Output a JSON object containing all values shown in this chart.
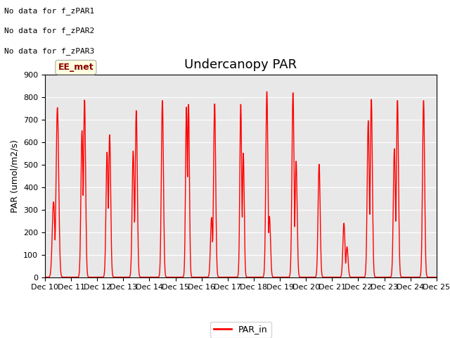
{
  "title": "Undercanopy PAR",
  "ylabel": "PAR (umol/m2/s)",
  "ylim": [
    0,
    900
  ],
  "line_color": "red",
  "line_width": 1.0,
  "bg_color": "#e8e8e8",
  "legend_label": "PAR_in",
  "no_data_texts": [
    "No data for f_zPAR1",
    "No data for f_zPAR2",
    "No data for f_zPAR3"
  ],
  "ee_met_text": "EE_met",
  "xtick_labels": [
    "Dec 10",
    "Dec 11",
    "Dec 12",
    "Dec 13",
    "Dec 14",
    "Dec 15",
    "Dec 16",
    "Dec 17",
    "Dec 18",
    "Dec 19",
    "Dec 20",
    "Dec 21",
    "Dec 22",
    "Dec 23",
    "Dec 24",
    "Dec 25"
  ],
  "ytick_values": [
    0,
    100,
    200,
    300,
    400,
    500,
    600,
    700,
    800,
    900
  ],
  "title_fontsize": 13,
  "axis_label_fontsize": 9,
  "tick_fontsize": 8,
  "nodata_fontsize": 8,
  "eemet_fontsize": 9,
  "n_days": 15,
  "pts_per_day": 96,
  "day_configs": [
    [
      0.48,
      755,
      0.33,
      335,
      0.05
    ],
    [
      0.52,
      790,
      0.42,
      650,
      0.04
    ],
    [
      0.48,
      635,
      0.38,
      555,
      0.04
    ],
    [
      0.5,
      745,
      0.38,
      560,
      0.04
    ],
    [
      0.5,
      790,
      null,
      null,
      0.04
    ],
    [
      0.5,
      775,
      0.42,
      755,
      0.035
    ],
    [
      0.5,
      775,
      0.38,
      265,
      0.04
    ],
    [
      0.5,
      775,
      0.6,
      550,
      0.035
    ],
    [
      0.5,
      830,
      0.6,
      270,
      0.04
    ],
    [
      0.5,
      825,
      0.62,
      515,
      0.04
    ],
    [
      0.5,
      505,
      null,
      null,
      0.04
    ],
    [
      0.45,
      240,
      0.57,
      135,
      0.04
    ],
    [
      0.5,
      795,
      0.38,
      695,
      0.04
    ],
    [
      0.5,
      790,
      0.38,
      570,
      0.04
    ],
    [
      0.5,
      790,
      null,
      null,
      0.04
    ]
  ]
}
